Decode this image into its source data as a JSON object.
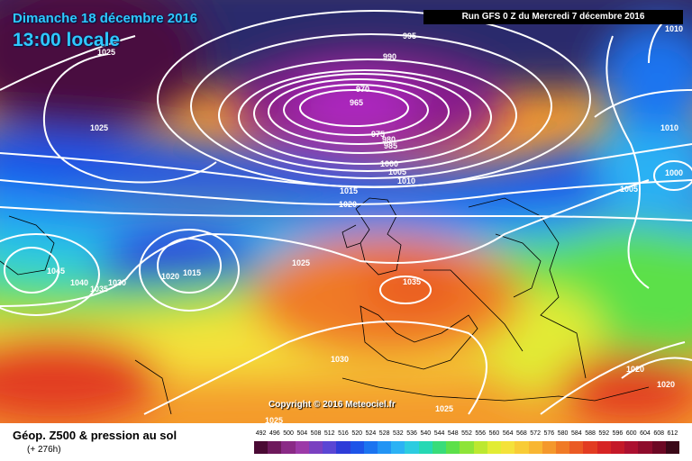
{
  "header": {
    "date_text": "Dimanche 18 décembre 2016",
    "time_text": "13:00 locale",
    "run_text": "Run GFS 0 Z du Mercredi 7 décembre 2016"
  },
  "copyright": "Copyright © 2016 Meteociel.fr",
  "legend": {
    "title": "Géop. Z500 & pression au sol",
    "subtitle": "(+ 276h)",
    "scale_values": [
      "492",
      "496",
      "500",
      "504",
      "508",
      "512",
      "516",
      "520",
      "524",
      "528",
      "532",
      "536",
      "540",
      "544",
      "548",
      "552",
      "556",
      "560",
      "564",
      "568",
      "572",
      "576",
      "580",
      "584",
      "588",
      "592",
      "596",
      "600",
      "604",
      "608",
      "612"
    ],
    "scale_colors": [
      "#4a0a34",
      "#6e1a5c",
      "#8a2a86",
      "#9c3aa8",
      "#7a40c0",
      "#5a46d4",
      "#2e3cd8",
      "#1d54e8",
      "#1b74f0",
      "#2294f4",
      "#2bb2f4",
      "#2ccce0",
      "#26d8b4",
      "#38dc7a",
      "#5ce04a",
      "#8ee438",
      "#bce830",
      "#e2ec34",
      "#f4e23a",
      "#f8cc36",
      "#f8b632",
      "#f4982c",
      "#f07a26",
      "#ea5a24",
      "#e23c22",
      "#d62424",
      "#c41828",
      "#ac1030",
      "#8e0c2c",
      "#6c0824",
      "#3a0818"
    ]
  },
  "isobar_labels": [
    "1025",
    "995",
    "990",
    "970",
    "965",
    "975",
    "980",
    "985",
    "1000",
    "1005",
    "1010",
    "1015",
    "1020",
    "1025",
    "1010",
    "1010",
    "1005",
    "1000",
    "1045",
    "1040",
    "1035",
    "1030",
    "1020",
    "1015",
    "1025",
    "1035",
    "1030",
    "1025",
    "1025",
    "1020",
    "1020"
  ],
  "icons": {
    "map": "weather-map-icon"
  }
}
